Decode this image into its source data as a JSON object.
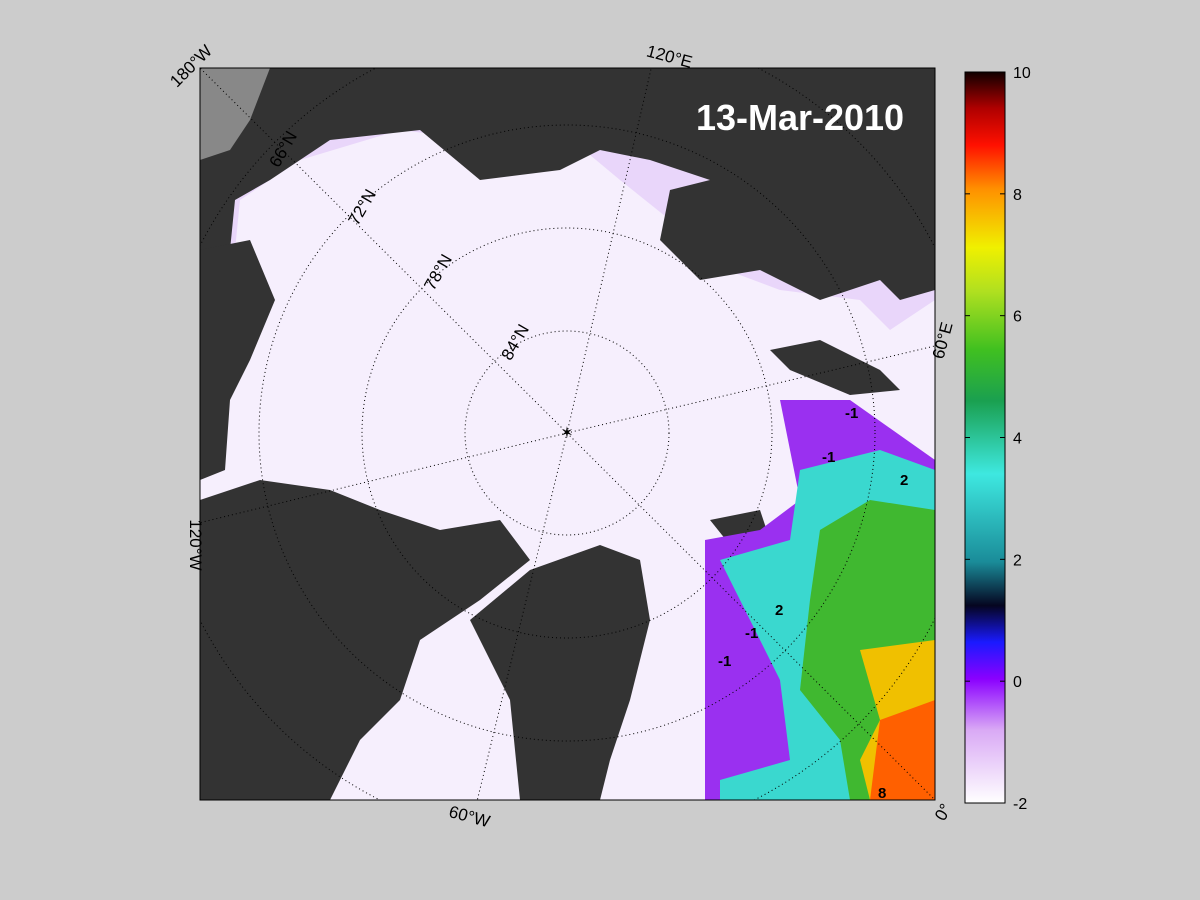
{
  "title": "13-Mar-2010",
  "longitude_labels": [
    "180°W",
    "120°E",
    "60°E",
    "0°",
    "60°W",
    "120°W"
  ],
  "latitude_labels": [
    "66°N",
    "72°N",
    "78°N",
    "84°N"
  ],
  "contour_labels": [
    "-1",
    "-1",
    "-1",
    "-1",
    "2",
    "2",
    "8"
  ],
  "colorbar": {
    "lim": [
      -2,
      10
    ],
    "ticks": [
      -2,
      0,
      2,
      4,
      6,
      8,
      10
    ]
  }
}
